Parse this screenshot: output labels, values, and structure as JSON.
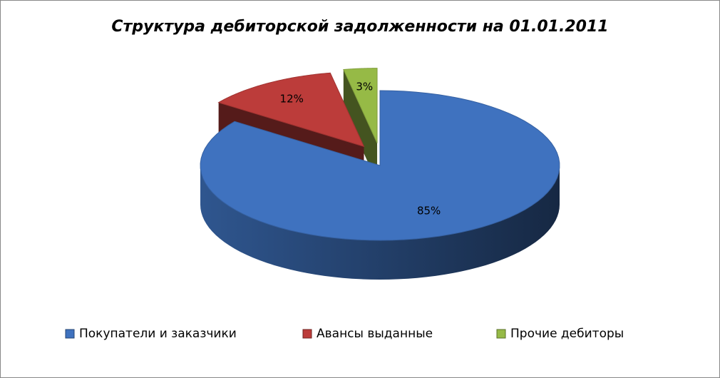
{
  "chart_data": {
    "type": "pie3d",
    "title": "Структура дебиторской задолженности на 01.01.2011",
    "categories": [
      "Покупатели и заказчики",
      "Авансы выданные",
      "Прочие дебиторы"
    ],
    "values": [
      85,
      12,
      3
    ],
    "value_labels": [
      "85%",
      "12%",
      "3%"
    ],
    "colors": [
      "#3f72bf",
      "#bc3c3a",
      "#96ba46"
    ],
    "legend": "bottom"
  }
}
